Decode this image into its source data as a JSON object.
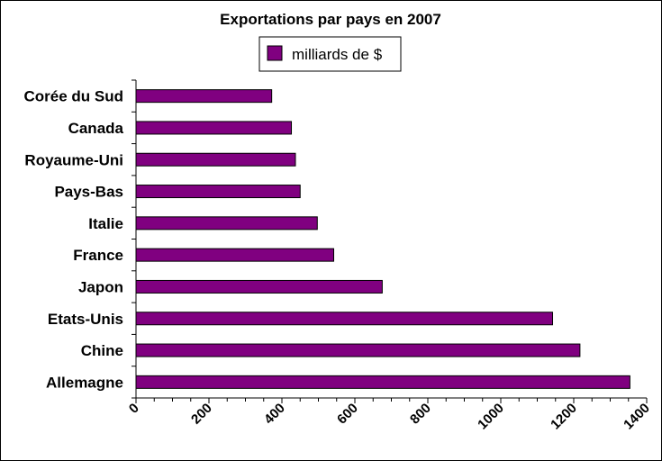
{
  "chart_data": {
    "type": "bar",
    "orientation": "horizontal",
    "title": "Exportations par pays en 2007",
    "categories": [
      "Corée du Sud",
      "Canada",
      "Royaume-Uni",
      "Pays-Bas",
      "Italie",
      "France",
      "Japon",
      "Etats-Unis",
      "Chine",
      "Allemagne"
    ],
    "series": [
      {
        "name": "milliards de $",
        "color": "#800080",
        "values": [
          372,
          426,
          437,
          450,
          497,
          542,
          675,
          1142,
          1217,
          1354
        ]
      }
    ],
    "xlim": [
      0,
      1400
    ],
    "xticks": [
      "0",
      "200",
      "400",
      "600",
      "800",
      "1000",
      "1200",
      "1400"
    ],
    "xlabel": "",
    "ylabel": "",
    "grid": false,
    "legend_position": "top-center"
  }
}
